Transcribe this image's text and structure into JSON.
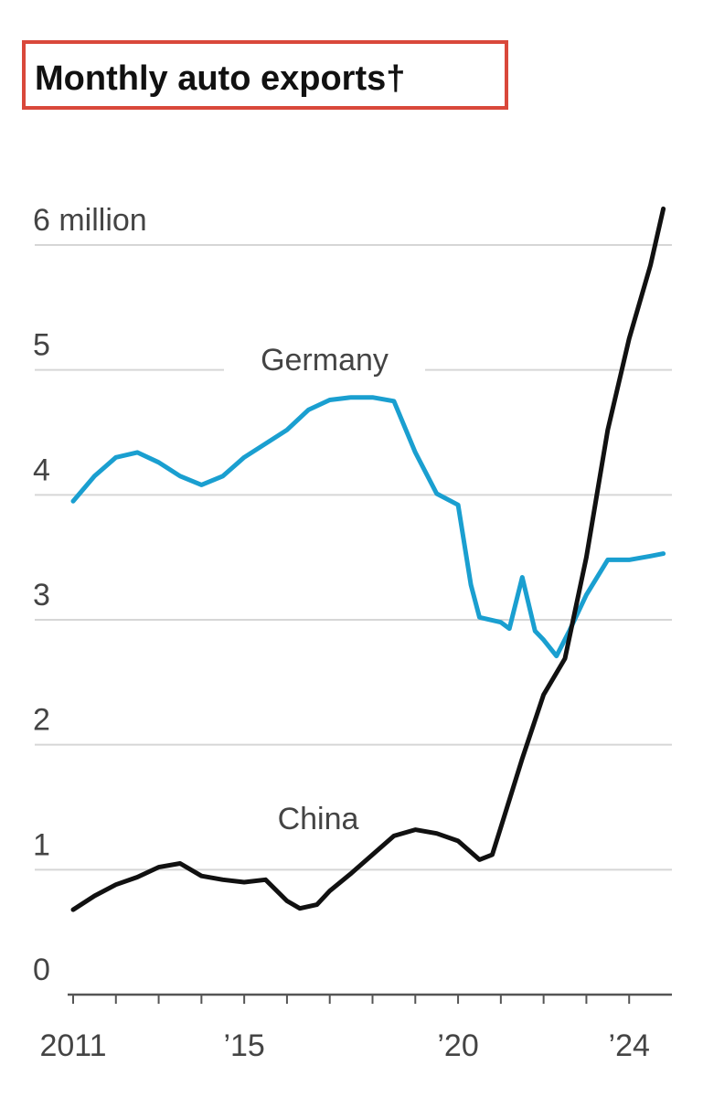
{
  "chart_data": {
    "type": "line",
    "title": "Monthly auto exports†",
    "xlim": [
      2011,
      2025
    ],
    "ylim": [
      0,
      6.3
    ],
    "xticks": [
      2011,
      {
        "value": 2012,
        "label": null
      },
      {
        "value": 2013,
        "label": null
      },
      {
        "value": 2014,
        "label": null
      },
      {
        "value": 2015,
        "label": "’15"
      },
      {
        "value": 2016,
        "label": null
      },
      {
        "value": 2017,
        "label": null
      },
      {
        "value": 2018,
        "label": null
      },
      {
        "value": 2019,
        "label": null
      },
      {
        "value": 2020,
        "label": "’20"
      },
      {
        "value": 2021,
        "label": null
      },
      {
        "value": 2022,
        "label": null
      },
      {
        "value": 2023,
        "label": null
      },
      {
        "value": 2024,
        "label": "’24"
      }
    ],
    "yticks": [
      0,
      1,
      2,
      3,
      4,
      5,
      {
        "value": 6,
        "label": "6 million"
      }
    ],
    "grid": true,
    "series": [
      {
        "name": "Germany",
        "color": "#1a9fd0",
        "x": [
          2011,
          2011.5,
          2012,
          2012.5,
          2013,
          2013.5,
          2014,
          2014.5,
          2015,
          2015.5,
          2016,
          2016.5,
          2017,
          2017.5,
          2018,
          2018.5,
          2019,
          2019.5,
          2020,
          2020.3,
          2020.5,
          2021,
          2021.2,
          2021.5,
          2021.8,
          2022,
          2022.3,
          2022.6,
          2023,
          2023.5,
          2024,
          2024.5,
          2024.8
        ],
        "values": [
          3.95,
          4.15,
          4.3,
          4.34,
          4.26,
          4.15,
          4.08,
          4.15,
          4.3,
          4.41,
          4.52,
          4.68,
          4.76,
          4.78,
          4.78,
          4.75,
          4.34,
          4.01,
          3.92,
          3.28,
          3.02,
          2.98,
          2.93,
          3.34,
          2.91,
          2.84,
          2.71,
          2.91,
          3.2,
          3.48,
          3.48,
          3.51,
          3.53
        ]
      },
      {
        "name": "China",
        "color": "#111111",
        "x": [
          2011,
          2011.5,
          2012,
          2012.5,
          2013,
          2013.5,
          2014,
          2014.5,
          2015,
          2015.5,
          2016,
          2016.3,
          2016.7,
          2017,
          2017.5,
          2018,
          2018.5,
          2019,
          2019.5,
          2020,
          2020.5,
          2020.8,
          2021,
          2021.5,
          2022,
          2022.5,
          2023,
          2023.5,
          2024,
          2024.5,
          2024.8
        ],
        "values": [
          0.68,
          0.79,
          0.88,
          0.94,
          1.02,
          1.05,
          0.95,
          0.92,
          0.9,
          0.92,
          0.75,
          0.69,
          0.72,
          0.83,
          0.97,
          1.12,
          1.27,
          1.32,
          1.29,
          1.23,
          1.08,
          1.12,
          1.34,
          1.89,
          2.4,
          2.69,
          3.5,
          4.52,
          5.25,
          5.84,
          6.29
        ]
      }
    ]
  }
}
